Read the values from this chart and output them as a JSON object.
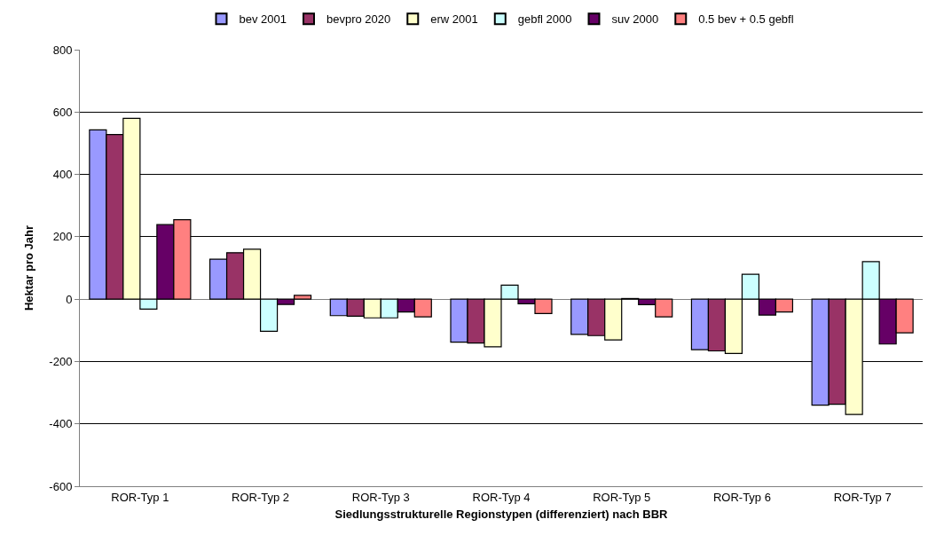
{
  "chart_data": {
    "type": "bar",
    "xlabel": "Siedlungsstrukturelle Regionstypen (differenziert) nach BBR",
    "ylabel": "Hektar pro Jahr",
    "categories": [
      "ROR-Typ 1",
      "ROR-Typ 2",
      "ROR-Typ 3",
      "ROR-Typ 4",
      "ROR-Typ 5",
      "ROR-Typ 6",
      "ROR-Typ 7"
    ],
    "series": [
      {
        "name": "bev 2001",
        "color": "#9999ff",
        "values": [
          543,
          128,
          -53,
          -138,
          -113,
          -162,
          -340
        ]
      },
      {
        "name": "bevpro 2020",
        "color": "#993366",
        "values": [
          528,
          149,
          -55,
          -141,
          -117,
          -166,
          -337
        ]
      },
      {
        "name": "erw 2001",
        "color": "#ffffcc",
        "values": [
          580,
          160,
          -60,
          -153,
          -131,
          -174,
          -370
        ]
      },
      {
        "name": "gebfl 2000",
        "color": "#ccffff",
        "values": [
          -32,
          -103,
          -60,
          45,
          2,
          80,
          120
        ]
      },
      {
        "name": "suv 2000",
        "color": "#660066",
        "values": [
          239,
          -17,
          -41,
          -15,
          -18,
          -51,
          -144
        ]
      },
      {
        "name": "0.5 bev + 0.5 gebfl",
        "color": "#ff8080",
        "values": [
          255,
          12,
          -57,
          -46,
          -57,
          -41,
          -108
        ]
      }
    ],
    "ylim": [
      -600,
      800
    ],
    "yticks": [
      -600,
      -400,
      -200,
      0,
      200,
      400,
      600,
      800
    ],
    "grid": "y",
    "legend": "top"
  }
}
